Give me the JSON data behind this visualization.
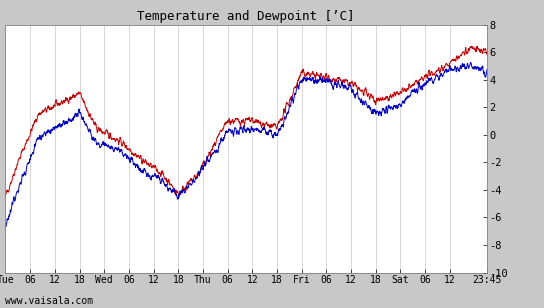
{
  "title": "Temperature and Dewpoint [’C]",
  "xlabel_bottom": "www.vaisala.com",
  "ylim": [
    -10,
    8
  ],
  "yticks": [
    -10,
    -8,
    -6,
    -4,
    -2,
    0,
    2,
    4,
    6,
    8
  ],
  "fig_bg_color": "#c8c8c8",
  "plot_bg_color": "#ffffff",
  "temp_color": "#cc0000",
  "dewp_color": "#0000cc",
  "line_width": 0.7,
  "x_tick_labels": [
    "Tue",
    "06",
    "12",
    "18",
    "Wed",
    "06",
    "12",
    "18",
    "Thu",
    "06",
    "12",
    "18",
    "Fri",
    "06",
    "12",
    "18",
    "Sat",
    "06",
    "12",
    "23:45"
  ],
  "x_tick_positions": [
    0,
    6,
    12,
    18,
    24,
    30,
    36,
    42,
    48,
    54,
    60,
    66,
    72,
    78,
    84,
    90,
    96,
    102,
    108,
    117
  ],
  "x_total": 117,
  "grid_color": "#c8c8c8",
  "temp_keypoints_x": [
    0,
    3,
    8,
    18,
    22,
    28,
    34,
    38,
    42,
    47,
    54,
    60,
    66,
    72,
    78,
    84,
    90,
    96,
    102,
    108,
    113,
    117
  ],
  "temp_keypoints_y": [
    -4.5,
    -2,
    1.5,
    3.0,
    0.5,
    -0.5,
    -2.0,
    -2.8,
    -4.3,
    -2.8,
    1.0,
    1.0,
    0.5,
    4.5,
    4.2,
    3.7,
    2.5,
    3.0,
    4.2,
    5.2,
    6.3,
    6.0
  ],
  "dewp_keypoints_x": [
    0,
    3,
    8,
    18,
    22,
    28,
    34,
    38,
    42,
    47,
    54,
    60,
    66,
    72,
    78,
    84,
    90,
    96,
    102,
    108,
    113,
    117
  ],
  "dewp_keypoints_y": [
    -6.5,
    -4,
    -0.2,
    1.5,
    -0.5,
    -1.2,
    -2.8,
    -3.3,
    -4.6,
    -2.8,
    0.2,
    0.5,
    0.0,
    4.0,
    3.9,
    3.3,
    1.5,
    2.2,
    3.8,
    4.8,
    5.0,
    4.5
  ]
}
